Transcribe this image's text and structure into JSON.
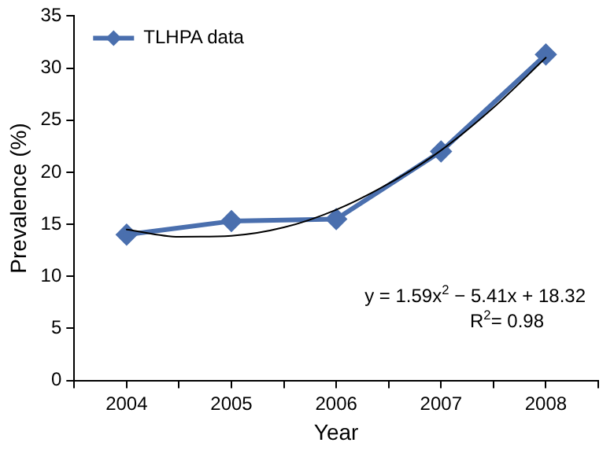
{
  "chart_data": {
    "type": "line",
    "xlabel": "Year",
    "ylabel": "Prevalence (%)",
    "x": [
      2004,
      2005,
      2006,
      2007,
      2008
    ],
    "xlim": [
      2003.5,
      2008.5
    ],
    "xticks": [
      {
        "value": 2003.5,
        "label": null
      },
      2004,
      {
        "value": 2004.5,
        "label": null
      },
      2005,
      {
        "value": 2005.5,
        "label": null
      },
      2006,
      {
        "value": 2006.5,
        "label": null
      },
      2007,
      {
        "value": 2007.5,
        "label": null
      },
      2008,
      {
        "value": 2008.5,
        "label": null
      }
    ],
    "ylim": [
      0,
      35
    ],
    "yticks": [
      0,
      5,
      10,
      15,
      20,
      25,
      30,
      35
    ],
    "grid": false,
    "legend": "top left",
    "marker": "diamond",
    "line_style": "solid",
    "series": [
      {
        "name": "TLHPA data",
        "color": "#4a6fae",
        "values": [
          14,
          15.3,
          15.5,
          22,
          31.3
        ]
      },
      {
        "type": "line",
        "color": "#000000",
        "marker": "none",
        "x": [
          2004,
          2004.5,
          2005,
          2005.5,
          2006,
          2006.5,
          2007,
          2007.5,
          2008
        ],
        "values": [
          14.5,
          13.8,
          13.9,
          14.7,
          16.4,
          18.9,
          22.1,
          26.2,
          31
        ]
      }
    ],
    "annotations": [
      "y = 1.59x$^{2}$ − 5.41x + 18.32",
      "R$^{2}$= 0.98"
    ]
  }
}
